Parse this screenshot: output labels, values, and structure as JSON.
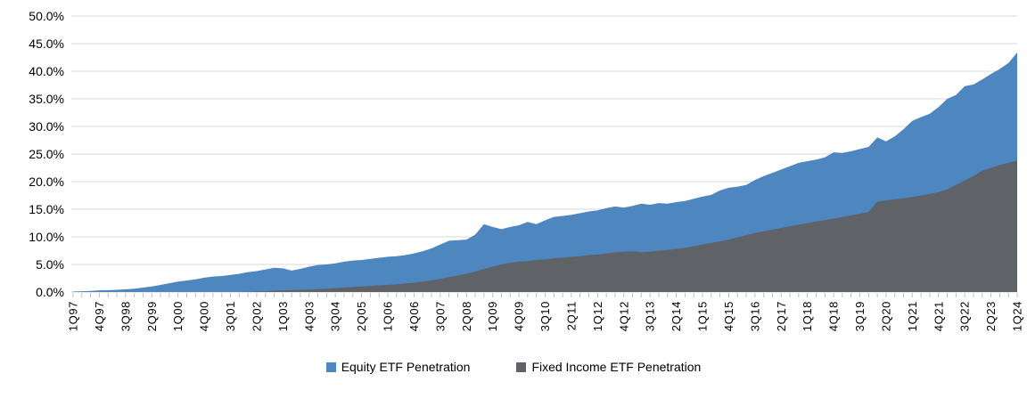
{
  "chart_data": {
    "type": "area",
    "title": "",
    "xlabel": "",
    "ylabel": "",
    "ylim": [
      0,
      50
    ],
    "grid": "horizontal",
    "legend_position": "bottom-center",
    "series_mode": "overlaid (not stacked); equity drawn behind, fixed income in front",
    "y_tick_labels": [
      "0.0%",
      "5.0%",
      "10.0%",
      "15.0%",
      "20.0%",
      "25.0%",
      "30.0%",
      "35.0%",
      "40.0%",
      "45.0%",
      "50.0%"
    ],
    "x_tick_labels": [
      "1Q97",
      "4Q97",
      "3Q98",
      "2Q99",
      "1Q00",
      "4Q00",
      "3Q01",
      "2Q02",
      "1Q03",
      "4Q03",
      "3Q04",
      "2Q05",
      "1Q06",
      "4Q06",
      "3Q07",
      "2Q08",
      "1Q09",
      "4Q09",
      "3Q10",
      "2Q11",
      "1Q12",
      "4Q12",
      "3Q13",
      "2Q14",
      "1Q15",
      "4Q15",
      "3Q16",
      "2Q17",
      "1Q18",
      "4Q18",
      "3Q19",
      "2Q20",
      "1Q21",
      "4Q21",
      "3Q22",
      "2Q23",
      "1Q24"
    ],
    "x_label_every_n_points": 3,
    "colors": {
      "background": "#FFFFFF",
      "gridline": "#D9D9D9",
      "axis": "#D9D9D9",
      "tick": "#BFBFBF",
      "text": "#000000"
    },
    "series": [
      {
        "name": "Equity ETF Penetration",
        "color": "#4E86C0",
        "values": [
          0.1,
          0.15,
          0.2,
          0.3,
          0.35,
          0.4,
          0.5,
          0.6,
          0.8,
          1.0,
          1.3,
          1.6,
          1.9,
          2.1,
          2.3,
          2.6,
          2.8,
          2.9,
          3.1,
          3.3,
          3.6,
          3.8,
          4.1,
          4.4,
          4.3,
          3.9,
          4.2,
          4.6,
          4.9,
          5.0,
          5.2,
          5.5,
          5.7,
          5.8,
          6.0,
          6.2,
          6.4,
          6.5,
          6.7,
          7.0,
          7.4,
          7.9,
          8.6,
          9.3,
          9.4,
          9.5,
          10.4,
          12.3,
          11.8,
          11.4,
          11.8,
          12.1,
          12.7,
          12.3,
          13.0,
          13.6,
          13.8,
          14.0,
          14.3,
          14.6,
          14.8,
          15.2,
          15.5,
          15.3,
          15.6,
          16.0,
          15.8,
          16.1,
          16.0,
          16.3,
          16.5,
          16.9,
          17.3,
          17.6,
          18.4,
          18.9,
          19.1,
          19.4,
          20.3,
          21.0,
          21.6,
          22.2,
          22.8,
          23.4,
          23.7,
          24.0,
          24.4,
          25.3,
          25.2,
          25.5,
          25.9,
          26.3,
          28.0,
          27.3,
          28.2,
          29.5,
          31.0,
          31.7,
          32.3,
          33.5,
          35.0,
          35.7,
          37.3,
          37.6,
          38.5,
          39.5,
          40.4,
          41.5,
          43.4
        ]
      },
      {
        "name": "Fixed Income ETF Penetration",
        "color": "#5F6266",
        "values": [
          0,
          0,
          0,
          0,
          0,
          0,
          0,
          0,
          0,
          0,
          0,
          0,
          0,
          0,
          0,
          0,
          0,
          0,
          0,
          0,
          0.05,
          0.1,
          0.15,
          0.25,
          0.3,
          0.35,
          0.4,
          0.45,
          0.5,
          0.6,
          0.7,
          0.8,
          0.9,
          1.0,
          1.1,
          1.2,
          1.3,
          1.4,
          1.55,
          1.7,
          1.9,
          2.1,
          2.4,
          2.7,
          3.0,
          3.3,
          3.7,
          4.2,
          4.6,
          5.0,
          5.3,
          5.5,
          5.6,
          5.8,
          5.9,
          6.1,
          6.2,
          6.4,
          6.5,
          6.7,
          6.8,
          7.0,
          7.2,
          7.3,
          7.4,
          7.2,
          7.3,
          7.5,
          7.6,
          7.8,
          8.0,
          8.3,
          8.6,
          8.9,
          9.2,
          9.5,
          9.9,
          10.3,
          10.7,
          11.0,
          11.3,
          11.6,
          11.9,
          12.2,
          12.5,
          12.8,
          13.0,
          13.3,
          13.6,
          13.9,
          14.2,
          14.5,
          16.4,
          16.6,
          16.8,
          17.0,
          17.2,
          17.5,
          17.8,
          18.1,
          18.6,
          19.4,
          20.2,
          21.0,
          22.0,
          22.5,
          23.0,
          23.4,
          23.8
        ]
      }
    ]
  }
}
